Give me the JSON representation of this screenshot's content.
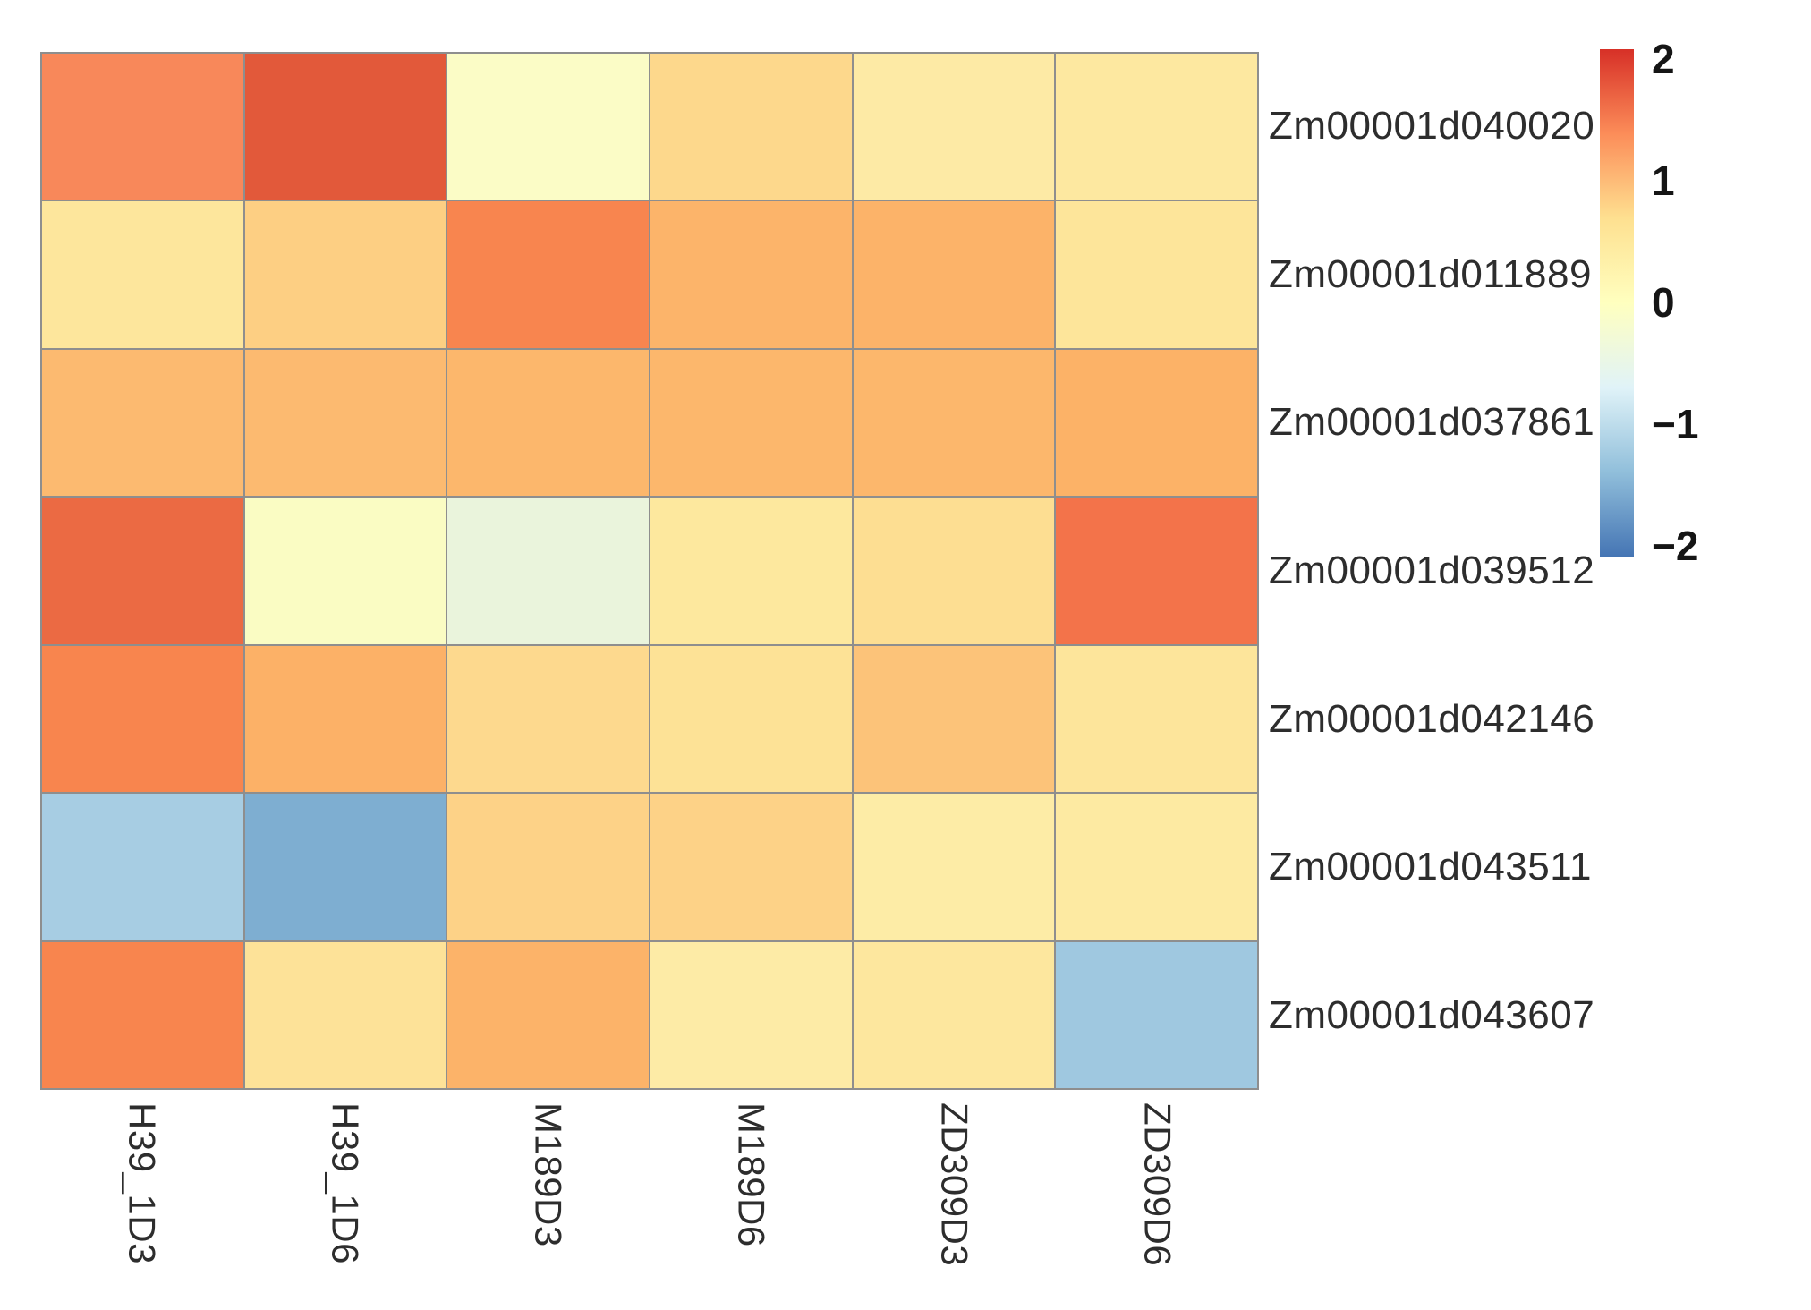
{
  "figure": {
    "background": "#ffffff",
    "grid_line_color": "#8e8e8e"
  },
  "chart_data": {
    "type": "heatmap",
    "title": "",
    "xlabel": "",
    "ylabel": "",
    "columns": [
      "H39_1D3",
      "H39_1D6",
      "M189D3",
      "M189D6",
      "ZD309D3",
      "ZD309D6"
    ],
    "rows": [
      "Zm00001d040020",
      "Zm00001d011889",
      "Zm00001d037861",
      "Zm00001d039512",
      "Zm00001d042146",
      "Zm00001d043511",
      "Zm00001d043607"
    ],
    "values": [
      [
        1.3,
        1.75,
        0.05,
        0.7,
        0.35,
        0.4
      ],
      [
        0.45,
        0.8,
        1.4,
        1.0,
        1.0,
        0.45
      ],
      [
        1.0,
        1.0,
        1.0,
        1.0,
        1.0,
        1.05
      ],
      [
        1.6,
        0.05,
        -0.15,
        0.35,
        0.55,
        1.5
      ],
      [
        1.4,
        1.0,
        0.7,
        0.6,
        0.85,
        0.45
      ],
      [
        -1.0,
        -1.35,
        0.75,
        0.75,
        0.3,
        0.35
      ],
      [
        1.4,
        0.6,
        1.0,
        0.3,
        0.4,
        -1.05
      ]
    ],
    "cell_colors": [
      [
        "#f8885a",
        "#e2593a",
        "#fbfcc6",
        "#fdd88c",
        "#fdeaa5",
        "#fde8a0"
      ],
      [
        "#fde69c",
        "#fdcf83",
        "#f8854f",
        "#fcb46a",
        "#fcb369",
        "#fde59a"
      ],
      [
        "#fcba70",
        "#fcba70",
        "#fcb76c",
        "#fcb76c",
        "#fcb76c",
        "#fcb267"
      ],
      [
        "#eb6a43",
        "#fafcc3",
        "#eaf4dc",
        "#fde89e",
        "#fdde92",
        "#f3734a"
      ],
      [
        "#f8854e",
        "#fcb167",
        "#fdd98e",
        "#fde296",
        "#fcc379",
        "#fde59b"
      ],
      [
        "#a7cde3",
        "#7eaed1",
        "#fdd287",
        "#fdd287",
        "#fdeca6",
        "#fdeaa2"
      ],
      [
        "#f8854e",
        "#fde298",
        "#fcb369",
        "#fdeba6",
        "#fde79e",
        "#9fc8e0"
      ]
    ],
    "legend": {
      "position": "right",
      "tick_labels": [
        "2",
        "1",
        "0",
        "−1",
        "−2"
      ],
      "tick_values": [
        2,
        1,
        0,
        -1,
        -2
      ],
      "range": [
        -2,
        2
      ],
      "gradient_top_to_bottom": [
        "#d73027",
        "#fc8d59",
        "#fee090",
        "#ffffbf",
        "#e0f3f8",
        "#91bfdb",
        "#4575b4"
      ]
    },
    "grid": true
  }
}
